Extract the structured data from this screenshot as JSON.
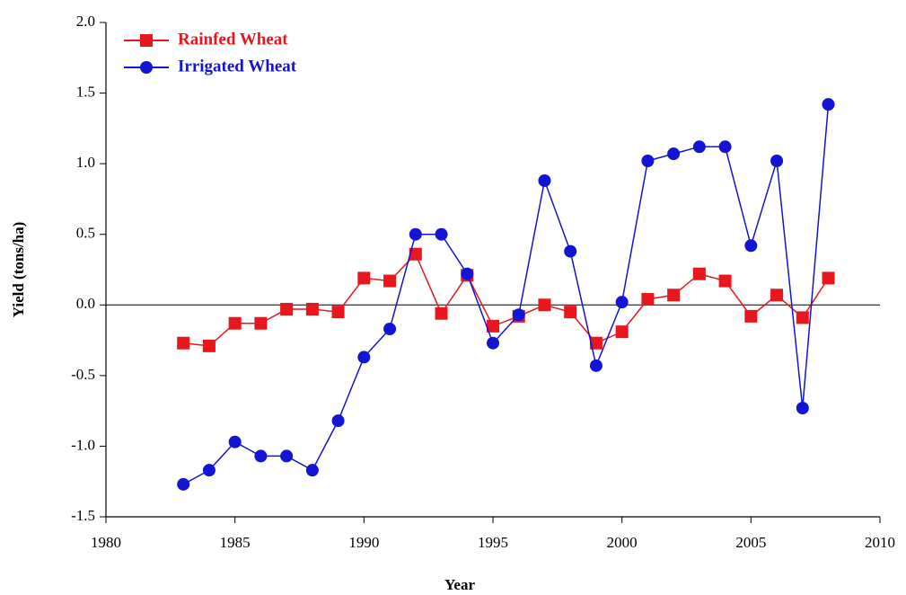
{
  "chart_data": {
    "type": "line",
    "y_label": "Yield (tons/ha)",
    "x_label": "Year",
    "x": [
      1983,
      1984,
      1985,
      1986,
      1987,
      1988,
      1989,
      1990,
      1991,
      1992,
      1993,
      1994,
      1995,
      1996,
      1997,
      1998,
      1999,
      2000,
      2001,
      2002,
      2003,
      2004,
      2005,
      2006,
      2007,
      2008
    ],
    "series": [
      {
        "name": "Rainfed Wheat",
        "color": "#e8171d",
        "marker": "square",
        "values": [
          -0.27,
          -0.29,
          -0.13,
          -0.13,
          -0.03,
          -0.03,
          -0.05,
          0.19,
          0.17,
          0.36,
          -0.06,
          0.21,
          -0.15,
          -0.08,
          0.0,
          -0.05,
          -0.27,
          -0.19,
          0.04,
          0.07,
          0.22,
          0.17,
          -0.08,
          0.07,
          -0.09,
          0.19
        ]
      },
      {
        "name": "Irrigated Wheat",
        "color": "#1414d4",
        "marker": "circle",
        "values": [
          -1.27,
          -1.17,
          -0.97,
          -1.07,
          -1.07,
          -1.17,
          -0.82,
          -0.37,
          -0.17,
          0.5,
          0.5,
          0.22,
          -0.27,
          -0.07,
          0.88,
          0.38,
          -0.43,
          0.02,
          1.02,
          1.07,
          1.12,
          1.12,
          0.42,
          1.02,
          -0.73,
          1.42
        ]
      }
    ],
    "xlim": [
      1980,
      2010
    ],
    "xticks": [
      1980,
      1985,
      1990,
      1995,
      2000,
      2005,
      2010
    ],
    "ylim": [
      -1.5,
      2.0
    ],
    "yticks": [
      {
        "value": 2.0,
        "label": "2.0"
      },
      1.5,
      {
        "value": 1.0,
        "label": "1.0"
      },
      0.5,
      {
        "value": 0.0,
        "label": "0.0"
      },
      -0.5,
      {
        "value": -1.0,
        "label": "-1.0"
      },
      -1.5
    ],
    "zero_line": true,
    "legend": "upper-left"
  }
}
